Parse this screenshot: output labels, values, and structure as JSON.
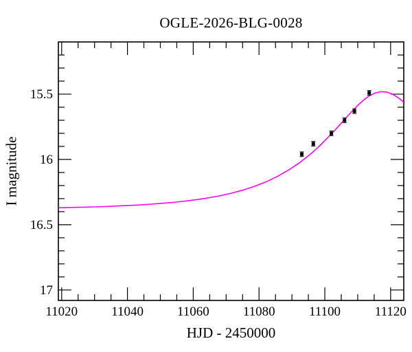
{
  "chart_data": {
    "type": "line",
    "title": "OGLE-2026-BLG-0028",
    "xlabel": "HJD - 2450000",
    "ylabel": "I magnitude",
    "x_range": [
      11019,
      11124
    ],
    "y_range_mag": [
      15.1,
      17.08
    ],
    "y_axis_inverted_magnitudes": true,
    "grid": false,
    "legend": "none",
    "x_ticks": {
      "values": [
        11020,
        11040,
        11060,
        11080,
        11100,
        11120
      ],
      "labels": [
        "11020",
        "11040",
        "11060",
        "11080",
        "11100",
        "11120"
      ],
      "minor_step": 5
    },
    "y_ticks": {
      "values": [
        15.5,
        16,
        16.5,
        17
      ],
      "labels": [
        "15.5",
        "16",
        "16.5",
        "17"
      ],
      "minor_step": 0.1
    },
    "colors": {
      "background": "#ffffff",
      "axis": "#000000",
      "model_curve": "#ff00ff",
      "data_points": "#000000"
    },
    "series": [
      {
        "name": "microlensing-model-curve",
        "type": "line",
        "color": "#ff00ff",
        "points": [
          [
            11019.0,
            16.37
          ],
          [
            11022.5,
            16.368
          ],
          [
            11026.0,
            16.366
          ],
          [
            11029.5,
            16.364
          ],
          [
            11033.0,
            16.361
          ],
          [
            11036.5,
            16.357
          ],
          [
            11040.0,
            16.353
          ],
          [
            11043.5,
            16.349
          ],
          [
            11047.0,
            16.343
          ],
          [
            11050.5,
            16.336
          ],
          [
            11054.0,
            16.329
          ],
          [
            11057.5,
            16.319
          ],
          [
            11061.0,
            16.308
          ],
          [
            11064.5,
            16.295
          ],
          [
            11068.0,
            16.279
          ],
          [
            11071.5,
            16.259
          ],
          [
            11075.0,
            16.236
          ],
          [
            11078.5,
            16.207
          ],
          [
            11082.0,
            16.173
          ],
          [
            11085.5,
            16.131
          ],
          [
            11089.0,
            16.081
          ],
          [
            11092.5,
            16.022
          ],
          [
            11096.0,
            15.951
          ],
          [
            11097.75,
            15.912
          ],
          [
            11099.5,
            15.869
          ],
          [
            11101.25,
            15.824
          ],
          [
            11103.0,
            15.777
          ],
          [
            11104.75,
            15.729
          ],
          [
            11106.5,
            15.679
          ],
          [
            11108.25,
            15.632
          ],
          [
            11110.0,
            15.586
          ],
          [
            11111.75,
            15.546
          ],
          [
            11113.5,
            15.513
          ],
          [
            11115.25,
            15.491
          ],
          [
            11117.0,
            15.481
          ],
          [
            11118.75,
            15.484
          ],
          [
            11120.5,
            15.499
          ],
          [
            11122.25,
            15.526
          ],
          [
            11124.0,
            15.562
          ]
        ]
      },
      {
        "name": "photometry-points",
        "type": "scatter",
        "marker": "square",
        "color": "#000000",
        "error_mag": 0.018,
        "points": [
          [
            11093.0,
            15.96
          ],
          [
            11096.5,
            15.88
          ],
          [
            11102.0,
            15.8
          ],
          [
            11106.0,
            15.7
          ],
          [
            11109.0,
            15.63
          ],
          [
            11113.5,
            15.49
          ]
        ]
      }
    ]
  }
}
